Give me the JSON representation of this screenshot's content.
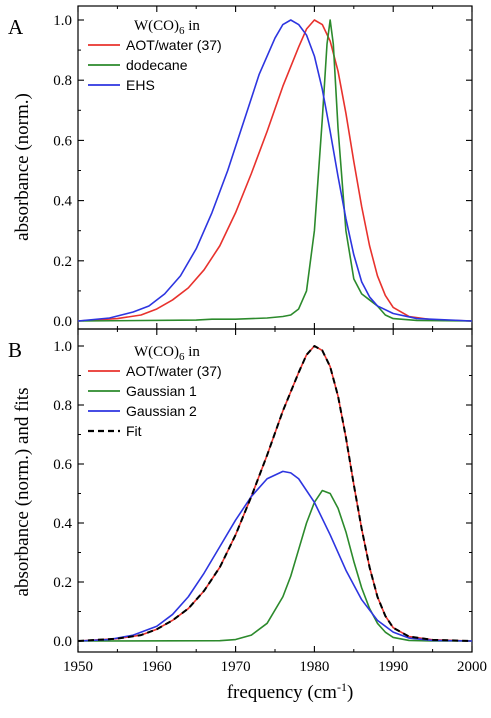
{
  "figure": {
    "xlabel_main": "frequency (cm",
    "xlabel_sup": "-1",
    "xlabel_end": ")"
  },
  "chart_data": [
    {
      "panel": "A",
      "type": "line",
      "ylabel": "absorbance (norm.)",
      "xlim": [
        1950,
        2000
      ],
      "ylim": [
        0,
        1.0
      ],
      "yticks": [
        "0.0",
        "0.2",
        "0.4",
        "0.6",
        "0.8",
        "1.0"
      ],
      "xticks": [
        "1950",
        "1960",
        "1970",
        "1980",
        "1990",
        "2000"
      ],
      "show_x_tick_labels": false,
      "legend_title_main": "W(CO)",
      "legend_title_sub": "6",
      "legend_title_end": " in",
      "legend_position": "top-center",
      "series": [
        {
          "name": "AOT/water (37)",
          "color": "#e8322d",
          "points": [
            [
              1950,
              0
            ],
            [
              1955,
              0.008
            ],
            [
              1958,
              0.02
            ],
            [
              1960,
              0.04
            ],
            [
              1962,
              0.07
            ],
            [
              1964,
              0.11
            ],
            [
              1966,
              0.17
            ],
            [
              1968,
              0.25
            ],
            [
              1970,
              0.36
            ],
            [
              1972,
              0.49
            ],
            [
              1974,
              0.63
            ],
            [
              1976,
              0.78
            ],
            [
              1978,
              0.91
            ],
            [
              1979,
              0.97
            ],
            [
              1980,
              1.0
            ],
            [
              1981,
              0.985
            ],
            [
              1982,
              0.93
            ],
            [
              1983,
              0.83
            ],
            [
              1984,
              0.69
            ],
            [
              1985,
              0.53
            ],
            [
              1986,
              0.38
            ],
            [
              1987,
              0.25
            ],
            [
              1988,
              0.15
            ],
            [
              1989,
              0.085
            ],
            [
              1990,
              0.045
            ],
            [
              1992,
              0.015
            ],
            [
              1995,
              0.004
            ],
            [
              2000,
              0
            ]
          ]
        },
        {
          "name": "dodecane",
          "color": "#2c8a2c",
          "points": [
            [
              1950,
              0
            ],
            [
              1965,
              0.003
            ],
            [
              1967,
              0.006
            ],
            [
              1970,
              0.006
            ],
            [
              1974,
              0.01
            ],
            [
              1976,
              0.015
            ],
            [
              1977,
              0.02
            ],
            [
              1978,
              0.04
            ],
            [
              1979,
              0.1
            ],
            [
              1980,
              0.3
            ],
            [
              1981,
              0.67
            ],
            [
              1981.6,
              0.92
            ],
            [
              1982,
              1.0
            ],
            [
              1982.4,
              0.92
            ],
            [
              1983,
              0.64
            ],
            [
              1984,
              0.3
            ],
            [
              1985,
              0.14
            ],
            [
              1986,
              0.09
            ],
            [
              1987,
              0.07
            ],
            [
              1988,
              0.05
            ],
            [
              1989,
              0.02
            ],
            [
              1990,
              0.008
            ],
            [
              1993,
              0.002
            ],
            [
              2000,
              0
            ]
          ]
        },
        {
          "name": "EHS",
          "color": "#2d35e0",
          "points": [
            [
              1950,
              0
            ],
            [
              1954,
              0.01
            ],
            [
              1957,
              0.03
            ],
            [
              1959,
              0.05
            ],
            [
              1961,
              0.09
            ],
            [
              1963,
              0.15
            ],
            [
              1965,
              0.24
            ],
            [
              1967,
              0.36
            ],
            [
              1969,
              0.5
            ],
            [
              1971,
              0.66
            ],
            [
              1973,
              0.82
            ],
            [
              1975,
              0.94
            ],
            [
              1976,
              0.985
            ],
            [
              1977,
              1.0
            ],
            [
              1978,
              0.985
            ],
            [
              1979,
              0.95
            ],
            [
              1980,
              0.88
            ],
            [
              1981,
              0.77
            ],
            [
              1982,
              0.63
            ],
            [
              1983,
              0.48
            ],
            [
              1984,
              0.34
            ],
            [
              1985,
              0.22
            ],
            [
              1986,
              0.13
            ],
            [
              1987,
              0.08
            ],
            [
              1988,
              0.05
            ],
            [
              1990,
              0.025
            ],
            [
              1993,
              0.008
            ],
            [
              2000,
              0
            ]
          ]
        }
      ]
    },
    {
      "panel": "B",
      "type": "line",
      "ylabel": "absorbance (norm.) and fits",
      "xlim": [
        1950,
        2000
      ],
      "ylim": [
        0,
        1.0
      ],
      "yticks": [
        "0.0",
        "0.2",
        "0.4",
        "0.6",
        "0.8",
        "1.0"
      ],
      "xticks": [
        "1950",
        "1960",
        "1970",
        "1980",
        "1990",
        "2000"
      ],
      "show_x_tick_labels": true,
      "legend_title_main": "W(CO)",
      "legend_title_sub": "6",
      "legend_title_end": " in",
      "legend_position": "top-center",
      "series": [
        {
          "name": "AOT/water (37)",
          "color": "#e8322d",
          "points": [
            [
              1950,
              0
            ],
            [
              1955,
              0.008
            ],
            [
              1958,
              0.02
            ],
            [
              1960,
              0.04
            ],
            [
              1962,
              0.07
            ],
            [
              1964,
              0.11
            ],
            [
              1966,
              0.17
            ],
            [
              1968,
              0.25
            ],
            [
              1970,
              0.36
            ],
            [
              1972,
              0.49
            ],
            [
              1974,
              0.63
            ],
            [
              1976,
              0.78
            ],
            [
              1978,
              0.91
            ],
            [
              1979,
              0.97
            ],
            [
              1980,
              1.0
            ],
            [
              1981,
              0.985
            ],
            [
              1982,
              0.93
            ],
            [
              1983,
              0.83
            ],
            [
              1984,
              0.69
            ],
            [
              1985,
              0.53
            ],
            [
              1986,
              0.38
            ],
            [
              1987,
              0.25
            ],
            [
              1988,
              0.15
            ],
            [
              1989,
              0.085
            ],
            [
              1990,
              0.045
            ],
            [
              1992,
              0.015
            ],
            [
              1995,
              0.004
            ],
            [
              2000,
              0
            ]
          ]
        },
        {
          "name": "Gaussian 1",
          "color": "#2c8a2c",
          "points": [
            [
              1950,
              0
            ],
            [
              1968,
              0.001
            ],
            [
              1970,
              0.005
            ],
            [
              1972,
              0.02
            ],
            [
              1974,
              0.06
            ],
            [
              1976,
              0.15
            ],
            [
              1977,
              0.22
            ],
            [
              1978,
              0.31
            ],
            [
              1979,
              0.4
            ],
            [
              1980,
              0.47
            ],
            [
              1981,
              0.51
            ],
            [
              1982,
              0.5
            ],
            [
              1983,
              0.45
            ],
            [
              1984,
              0.37
            ],
            [
              1985,
              0.27
            ],
            [
              1986,
              0.18
            ],
            [
              1987,
              0.11
            ],
            [
              1988,
              0.06
            ],
            [
              1989,
              0.03
            ],
            [
              1990,
              0.012
            ],
            [
              1992,
              0.002
            ],
            [
              1995,
              0
            ],
            [
              2000,
              0
            ]
          ]
        },
        {
          "name": "Gaussian 2",
          "color": "#2d35e0",
          "points": [
            [
              1950,
              0
            ],
            [
              1954,
              0.005
            ],
            [
              1957,
              0.02
            ],
            [
              1960,
              0.05
            ],
            [
              1962,
              0.09
            ],
            [
              1964,
              0.15
            ],
            [
              1966,
              0.23
            ],
            [
              1968,
              0.32
            ],
            [
              1970,
              0.41
            ],
            [
              1972,
              0.49
            ],
            [
              1974,
              0.55
            ],
            [
              1976,
              0.575
            ],
            [
              1977,
              0.57
            ],
            [
              1978,
              0.55
            ],
            [
              1980,
              0.47
            ],
            [
              1982,
              0.36
            ],
            [
              1984,
              0.24
            ],
            [
              1986,
              0.14
            ],
            [
              1988,
              0.07
            ],
            [
              1990,
              0.03
            ],
            [
              1992,
              0.01
            ],
            [
              1995,
              0.002
            ],
            [
              2000,
              0
            ]
          ]
        },
        {
          "name": "Fit",
          "color": "#000000",
          "dashed": true,
          "points": [
            [
              1950,
              0
            ],
            [
              1955,
              0.008
            ],
            [
              1958,
              0.02
            ],
            [
              1960,
              0.04
            ],
            [
              1962,
              0.07
            ],
            [
              1964,
              0.11
            ],
            [
              1966,
              0.17
            ],
            [
              1968,
              0.25
            ],
            [
              1970,
              0.36
            ],
            [
              1972,
              0.49
            ],
            [
              1974,
              0.63
            ],
            [
              1976,
              0.78
            ],
            [
              1978,
              0.91
            ],
            [
              1979,
              0.97
            ],
            [
              1980,
              1.0
            ],
            [
              1981,
              0.985
            ],
            [
              1982,
              0.93
            ],
            [
              1983,
              0.83
            ],
            [
              1984,
              0.69
            ],
            [
              1985,
              0.53
            ],
            [
              1986,
              0.38
            ],
            [
              1987,
              0.25
            ],
            [
              1988,
              0.15
            ],
            [
              1989,
              0.085
            ],
            [
              1990,
              0.045
            ],
            [
              1992,
              0.015
            ],
            [
              1995,
              0.004
            ],
            [
              2000,
              0
            ]
          ]
        }
      ]
    }
  ]
}
